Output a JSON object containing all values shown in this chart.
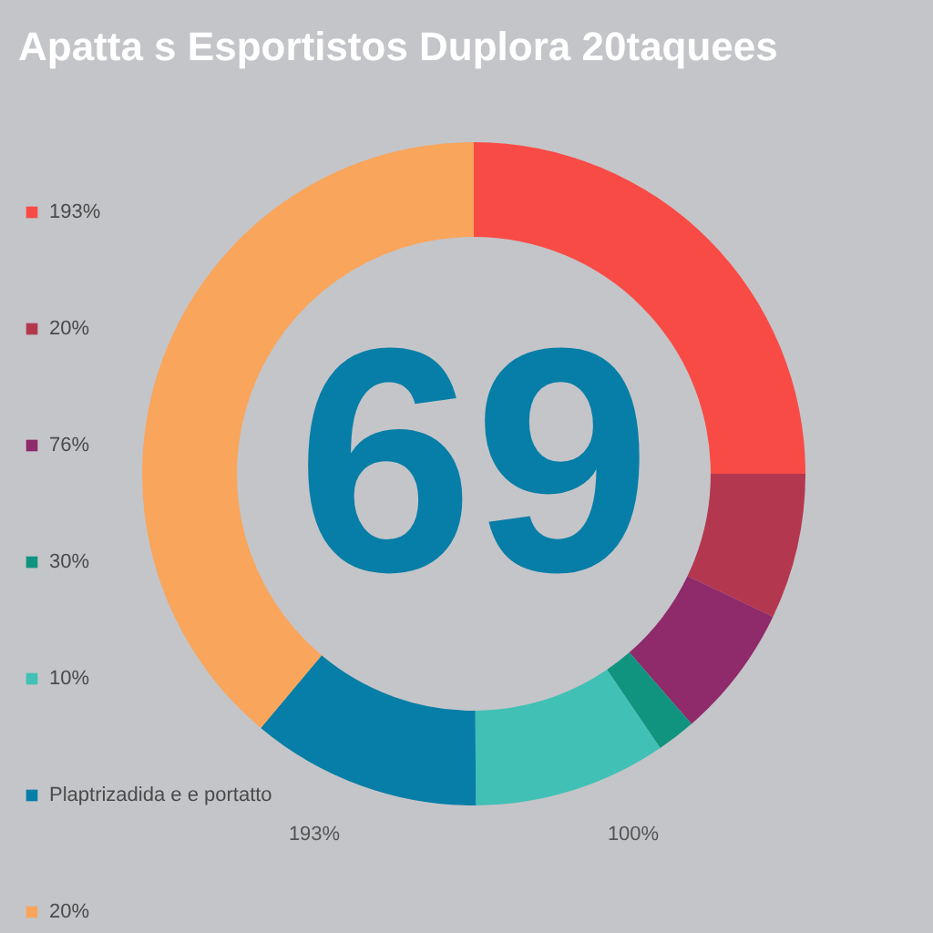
{
  "chart_data": {
    "type": "donut",
    "title": "Apatta s Esportistos Duplora 20taquees",
    "categories": [
      "193%",
      "20%",
      "76%",
      "30%",
      "10%",
      "Plaptrizadida e e portatto",
      "20%"
    ],
    "values": [
      25,
      7.1,
      6.5,
      1.9,
      9.4,
      11.2,
      38.9
    ],
    "colors": [
      "#f94b45",
      "#b3384f",
      "#8f2a6b",
      "#11947f",
      "#41c0b6",
      "#077ea7",
      "#f9a55c"
    ],
    "annotations": [
      "69",
      "193%",
      "100%"
    ],
    "legend": "left"
  }
}
